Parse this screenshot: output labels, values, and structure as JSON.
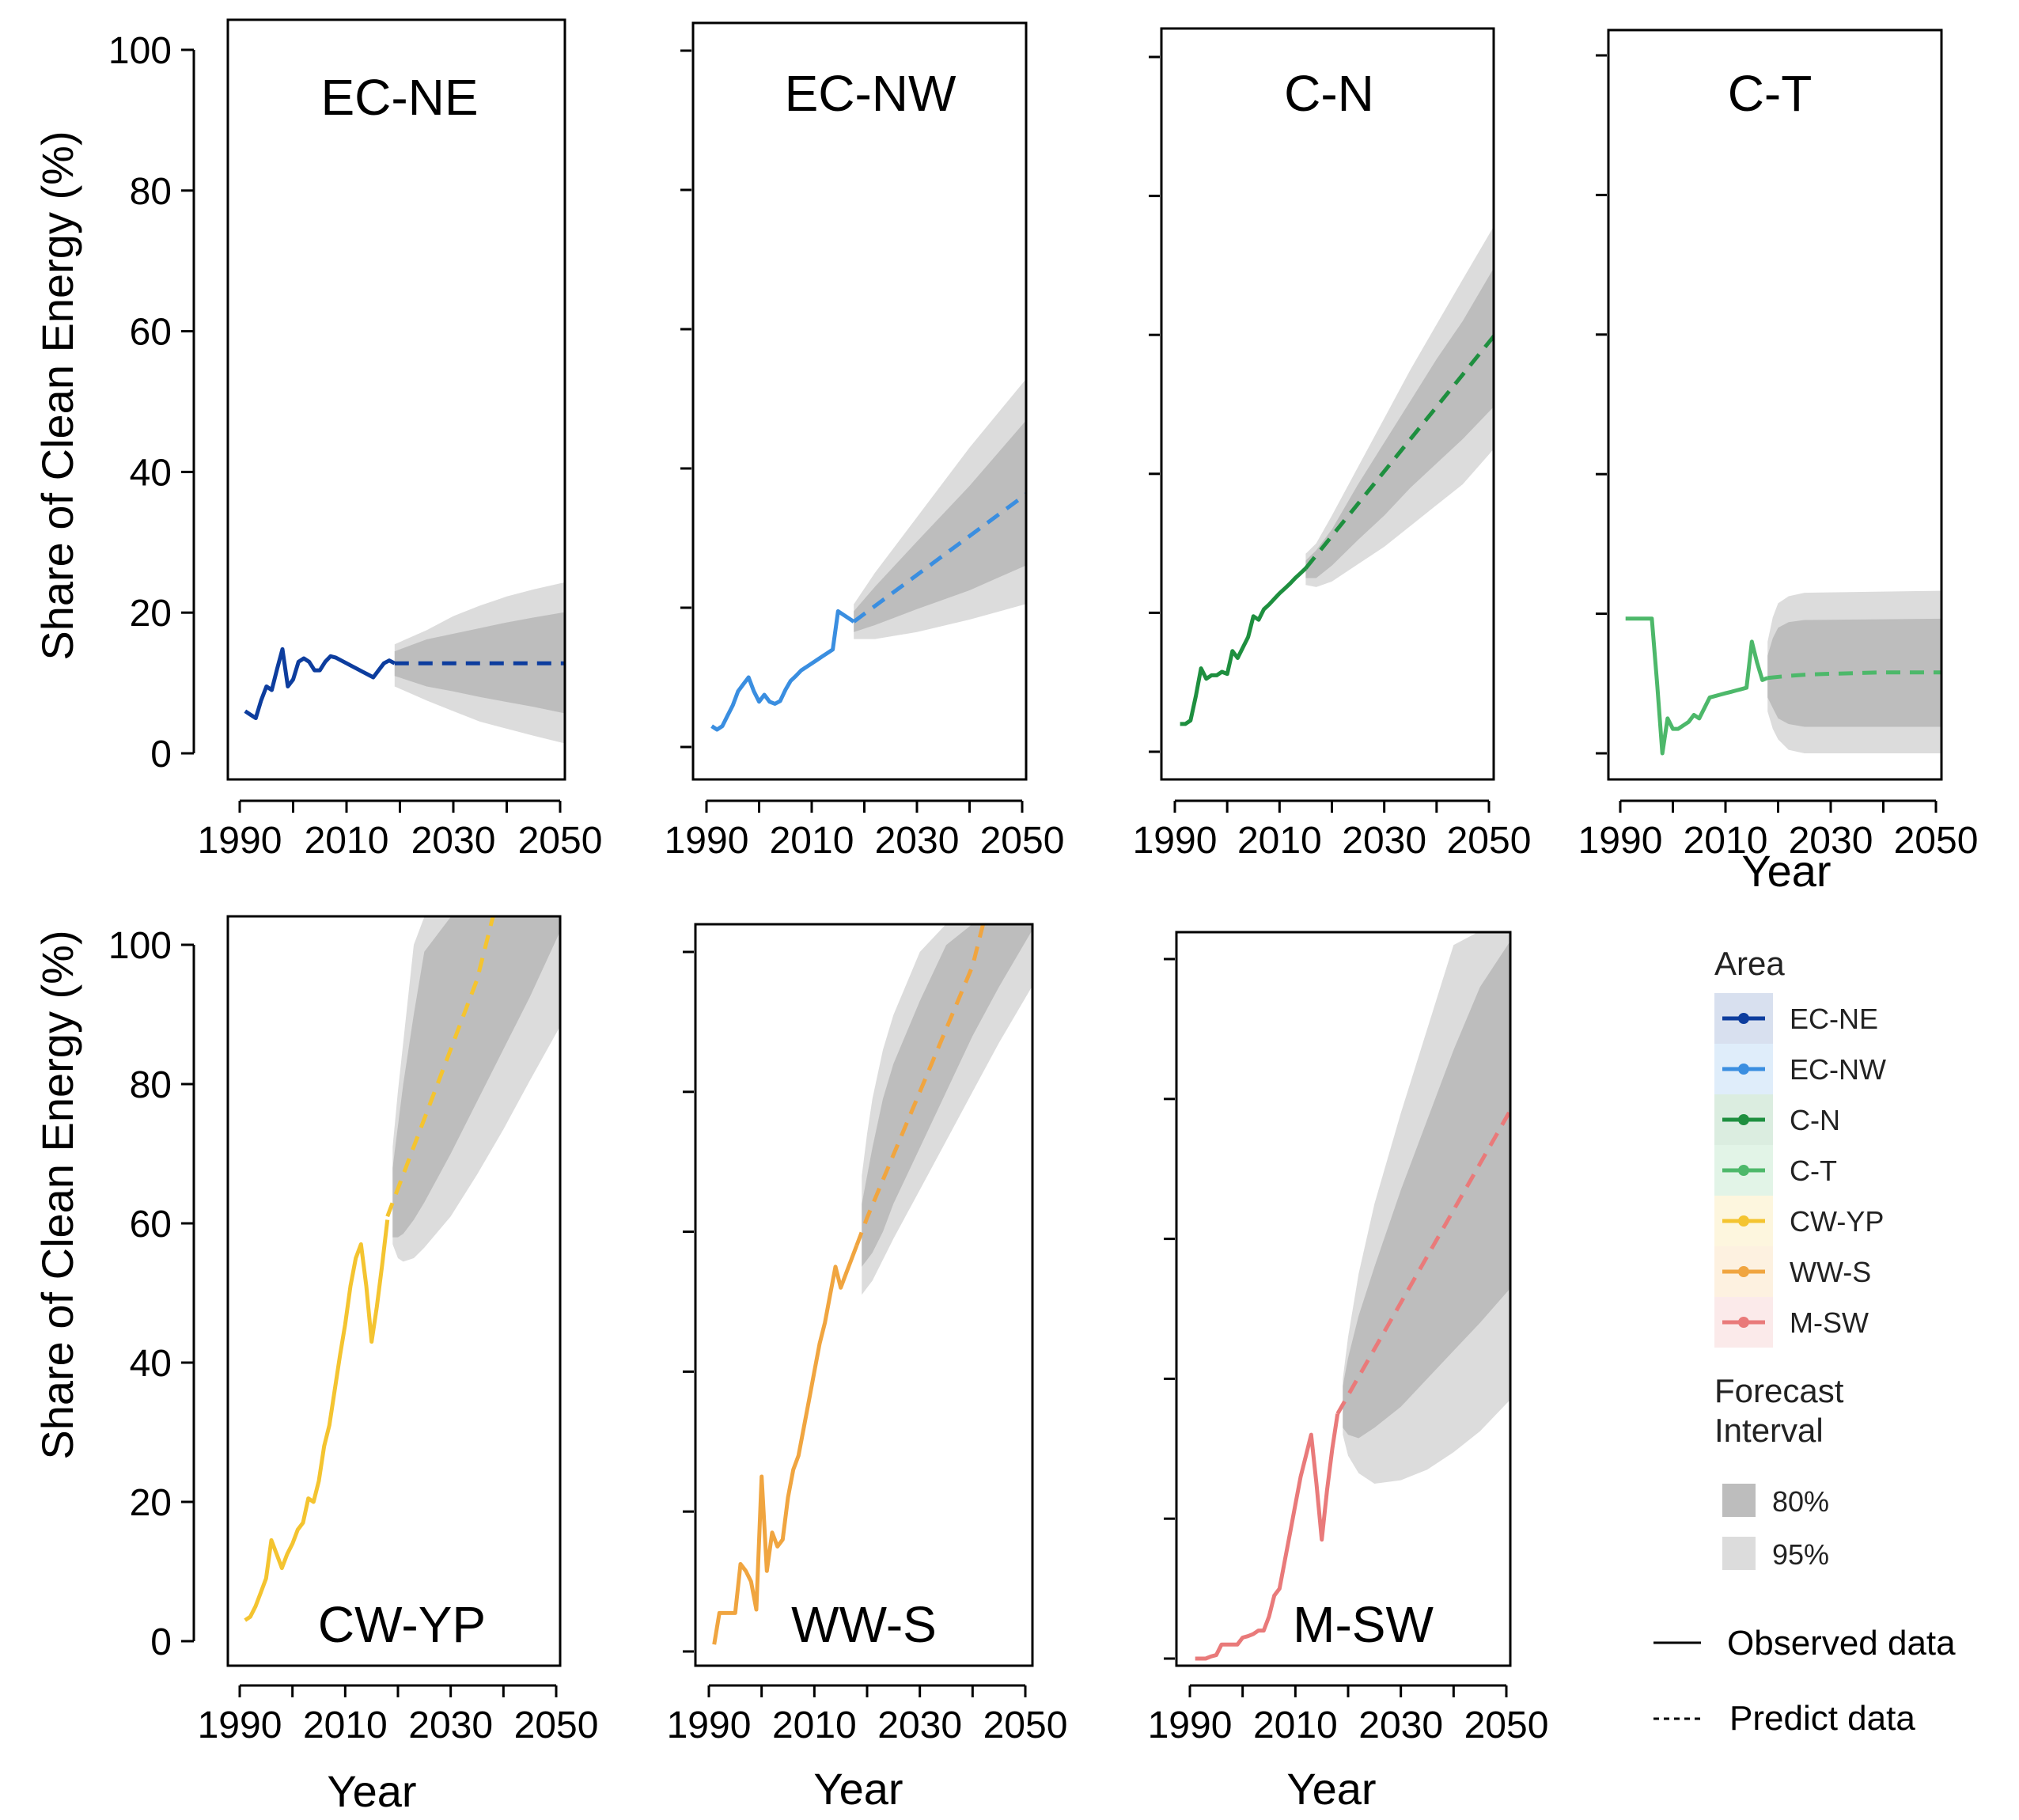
{
  "figure": {
    "y_axis_title": "Share of Clean Energy (%)",
    "x_axis_title": "Year",
    "x_ticks": [
      1990,
      2010,
      2030,
      2050
    ],
    "x_minor_ticks": [
      2000,
      2020,
      2040
    ],
    "y_ticks": [
      0,
      20,
      40,
      60,
      80,
      100
    ]
  },
  "chart_data": [
    {
      "type": "line",
      "title": "EC-NE",
      "color": "#0d3d9e",
      "xlim": [
        1988,
        2052
      ],
      "ylim": [
        -4,
        104
      ],
      "observed": {
        "x": [
          1991,
          1992,
          1993,
          1994,
          1995,
          1996,
          1997,
          1998,
          1999,
          2000,
          2001,
          2002,
          2003,
          2004,
          2005,
          2006,
          2007,
          2008,
          2009,
          2010,
          2011,
          2012,
          2013,
          2014,
          2015,
          2016,
          2017,
          2018,
          2019
        ],
        "y": [
          6,
          5.5,
          5,
          7.5,
          9.5,
          9,
          12,
          14.8,
          9.5,
          10.5,
          13,
          13.5,
          13,
          11.8,
          11.8,
          13,
          13.8,
          13.6,
          13.2,
          12.8,
          12.4,
          12,
          11.6,
          11.2,
          10.8,
          11.8,
          12.8,
          13.2,
          12.8
        ]
      },
      "predicted": {
        "x": [
          2019,
          2052
        ],
        "y": [
          12.8,
          12.8
        ]
      },
      "pi95": {
        "x": [
          2019,
          2025,
          2030,
          2035,
          2040,
          2045,
          2052
        ],
        "lower": [
          9.5,
          7.5,
          6,
          4.5,
          3.5,
          2.5,
          1.2
        ],
        "upper": [
          15.5,
          17.5,
          19.5,
          21,
          22.3,
          23.3,
          24.5
        ]
      },
      "pi80": {
        "x": [
          2019,
          2025,
          2030,
          2035,
          2040,
          2045,
          2052
        ],
        "lower": [
          11,
          9.5,
          8.8,
          8,
          7.3,
          6.6,
          5.5
        ],
        "upper": [
          14.5,
          16.2,
          17,
          17.8,
          18.6,
          19.3,
          20.2
        ]
      }
    },
    {
      "type": "line",
      "title": "EC-NW",
      "color": "#3a8ee0",
      "xlim": [
        1988,
        2052
      ],
      "ylim": [
        -4,
        104
      ],
      "observed": {
        "x": [
          1991,
          1992,
          1993,
          1994,
          1995,
          1996,
          1997,
          1998,
          1999,
          2000,
          2001,
          2002,
          2003,
          2004,
          2005,
          2006,
          2007,
          2008,
          2009,
          2010,
          2011,
          2012,
          2013,
          2014,
          2015,
          2016,
          2017,
          2018
        ],
        "y": [
          3,
          2.5,
          3,
          4.5,
          6,
          8,
          9,
          10,
          8,
          6.5,
          7.5,
          6.5,
          6.2,
          6.6,
          8.2,
          9.5,
          10.2,
          11,
          11.5,
          12,
          12.5,
          13,
          13.5,
          14,
          19.5,
          19,
          18.5,
          18
        ]
      },
      "predicted": {
        "x": [
          2018,
          2052
        ],
        "y": [
          18,
          37
        ]
      },
      "pi95": {
        "x": [
          2018,
          2022,
          2030,
          2040,
          2052
        ],
        "lower": [
          15.5,
          15.5,
          16.5,
          18.3,
          20.8
        ],
        "upper": [
          20.5,
          25,
          33,
          43,
          54
        ]
      },
      "pi80": {
        "x": [
          2018,
          2022,
          2030,
          2040,
          2052
        ],
        "lower": [
          16.5,
          17.5,
          19.8,
          22.5,
          26.5
        ],
        "upper": [
          19.5,
          23,
          29.5,
          37.5,
          48
        ]
      }
    },
    {
      "type": "line",
      "title": "C-N",
      "color": "#1e8f3f",
      "xlim": [
        1988,
        2052
      ],
      "ylim": [
        -4,
        104
      ],
      "observed": {
        "x": [
          1991,
          1992,
          1993,
          1994,
          1995,
          1996,
          1997,
          1998,
          1999,
          2000,
          2001,
          2002,
          2003,
          2004,
          2005,
          2006,
          2007,
          2008,
          2009,
          2010,
          2011,
          2012,
          2013,
          2014,
          2015
        ],
        "y": [
          4,
          4,
          4.5,
          8,
          12,
          10.5,
          11,
          11,
          11.5,
          11.2,
          14.5,
          13.5,
          15,
          16.5,
          19.5,
          19,
          20.5,
          21.2,
          22,
          22.8,
          23.5,
          24.2,
          25,
          25.7,
          26.4
        ]
      },
      "predicted": {
        "x": [
          2015,
          2052
        ],
        "y": [
          26.4,
          60.8
        ]
      },
      "pi95": {
        "x": [
          2015,
          2017,
          2020,
          2025,
          2030,
          2035,
          2040,
          2045,
          2052
        ],
        "lower": [
          24,
          23.7,
          24.5,
          27,
          29.5,
          32.5,
          35.5,
          38.5,
          44.5
        ],
        "upper": [
          28.5,
          30,
          34,
          41,
          48,
          55,
          61.5,
          68,
          77
        ]
      },
      "pi80": {
        "x": [
          2015,
          2017,
          2020,
          2025,
          2030,
          2035,
          2040,
          2045,
          2052
        ],
        "lower": [
          25,
          25,
          26.8,
          30.5,
          34,
          38,
          41.5,
          45,
          50.5
        ],
        "upper": [
          27.5,
          29,
          32,
          38.5,
          44.5,
          50.5,
          56.5,
          62,
          71
        ]
      }
    },
    {
      "type": "line",
      "title": "C-T",
      "color": "#4db86a",
      "xlim": [
        1988,
        2052
      ],
      "ylim": [
        -4,
        104
      ],
      "observed": {
        "x": [
          1991,
          1992,
          1993,
          1994,
          1995,
          1996,
          1997,
          1998,
          1999,
          2000,
          2001,
          2002,
          2003,
          2004,
          2005,
          2006,
          2007,
          2008,
          2009,
          2010,
          2011,
          2012,
          2013,
          2014,
          2015,
          2016,
          2017,
          2018
        ],
        "y": [
          19.3,
          19.3,
          19.3,
          19.3,
          19.3,
          19.3,
          10,
          0,
          5,
          3.5,
          3.5,
          4,
          4.5,
          5.5,
          5,
          6.5,
          8,
          8.2,
          8.4,
          8.6,
          8.8,
          9,
          9.2,
          9.4,
          16,
          13,
          10.5,
          10.8
        ]
      },
      "predicted": {
        "x": [
          2018,
          2022,
          2026,
          2030,
          2040,
          2052
        ],
        "y": [
          10.8,
          11.1,
          11.3,
          11.4,
          11.6,
          11.6
        ]
      },
      "pi95": {
        "x": [
          2018,
          2019,
          2020,
          2022,
          2025,
          2052
        ],
        "lower": [
          6,
          3.5,
          2,
          0.5,
          0,
          0
        ],
        "upper": [
          16,
          19.5,
          21.5,
          22.5,
          23,
          23.3
        ]
      },
      "pi80": {
        "x": [
          2018,
          2019,
          2020,
          2022,
          2025,
          2052
        ],
        "lower": [
          8,
          6.5,
          5,
          4.2,
          3.8,
          3.8
        ],
        "upper": [
          14,
          16.5,
          18,
          18.8,
          19.1,
          19.3
        ]
      }
    },
    {
      "type": "line",
      "title": "CW-YP",
      "color": "#f4c430",
      "xlim": [
        1988,
        2052
      ],
      "ylim": [
        -4,
        104
      ],
      "observed": {
        "x": [
          1991,
          1992,
          1993,
          1994,
          1995,
          1996,
          1997,
          1998,
          1999,
          2000,
          2001,
          2002,
          2003,
          2004,
          2005,
          2006,
          2007,
          2008,
          2009,
          2010,
          2011,
          2012,
          2013,
          2014,
          2015,
          2016,
          2017,
          2018
        ],
        "y": [
          3,
          3.5,
          5,
          7,
          9,
          14.5,
          12.5,
          10.5,
          12.5,
          14,
          16,
          17,
          20.5,
          20,
          23,
          28,
          31,
          36,
          41,
          45.5,
          51,
          55,
          57,
          51,
          43,
          48,
          54,
          60.5
        ]
      },
      "predicted": {
        "x": [
          2018,
          2020,
          2025,
          2030,
          2035,
          2038
        ],
        "y": [
          61,
          65,
          75,
          85,
          95,
          104
        ]
      },
      "pi95": {
        "x": [
          2019,
          2020,
          2021,
          2023,
          2025,
          2030,
          2035,
          2040,
          2045,
          2052
        ],
        "lower": [
          57,
          55,
          54.5,
          55,
          56.5,
          61,
          67,
          73.5,
          80.5,
          90
        ],
        "upper": [
          71,
          79,
          86,
          100,
          104,
          104,
          104,
          104,
          104,
          104
        ]
      },
      "pi80": {
        "x": [
          2019,
          2020,
          2021,
          2023,
          2025,
          2030,
          2035,
          2040,
          2045,
          2052
        ],
        "lower": [
          58,
          58,
          58.5,
          60.5,
          63,
          70,
          77.5,
          85,
          92.5,
          104
        ],
        "upper": [
          68,
          74,
          80,
          90,
          99,
          104,
          104,
          104,
          104,
          104
        ]
      }
    },
    {
      "type": "line",
      "title": "WW-S",
      "color": "#f0a540",
      "xlim": [
        1988,
        2052
      ],
      "ylim": [
        -4,
        104
      ],
      "observed": {
        "x": [
          1991,
          1992,
          1993,
          1994,
          1995,
          1996,
          1997,
          1998,
          1999,
          2000,
          2001,
          2002,
          2003,
          2004,
          2005,
          2006,
          2007,
          2008,
          2009,
          2010,
          2011,
          2012,
          2013,
          2014,
          2015,
          2016,
          2017,
          2018
        ],
        "y": [
          1,
          5.5,
          5.5,
          5.5,
          5.5,
          12.5,
          11.5,
          10,
          6,
          25,
          11.5,
          17,
          15,
          16,
          22,
          26,
          28,
          32,
          36,
          40,
          44,
          47,
          51,
          55,
          52,
          54,
          56,
          58
        ]
      },
      "predicted": {
        "x": [
          2018,
          2020,
          2025,
          2030,
          2035,
          2040,
          2042
        ],
        "y": [
          58,
          62,
          71,
          80,
          89,
          98,
          104
        ]
      },
      "pi95": {
        "x": [
          2019,
          2020,
          2021,
          2023,
          2025,
          2030,
          2035,
          2040,
          2045,
          2052
        ],
        "lower": [
          51,
          52,
          53,
          56,
          59,
          66,
          73,
          80,
          87,
          96
        ],
        "upper": [
          68,
          74,
          79,
          86,
          91,
          100,
          104,
          104,
          104,
          104
        ]
      },
      "pi80": {
        "x": [
          2019,
          2020,
          2021,
          2023,
          2025,
          2030,
          2035,
          2040,
          2045,
          2052
        ],
        "lower": [
          55,
          56,
          57,
          60,
          64,
          72,
          80,
          88,
          95,
          104
        ],
        "upper": [
          64,
          68,
          72,
          79,
          84,
          93,
          101,
          104,
          104,
          104
        ]
      }
    },
    {
      "type": "line",
      "title": "M-SW",
      "color": "#e97a7a",
      "xlim": [
        1988,
        2052
      ],
      "ylim": [
        -4,
        104
      ],
      "observed": {
        "x": [
          1991,
          1992,
          1993,
          1994,
          1995,
          1996,
          1997,
          1998,
          1999,
          2000,
          2001,
          2002,
          2003,
          2004,
          2005,
          2006,
          2007,
          2008,
          2009,
          2010,
          2011,
          2012,
          2013,
          2014,
          2015,
          2016,
          2017,
          2018
        ],
        "y": [
          0,
          0,
          0,
          0.3,
          0.5,
          2,
          2,
          2,
          2,
          3,
          3.2,
          3.5,
          4,
          4,
          6,
          9,
          10,
          14,
          18,
          22,
          26,
          29,
          32,
          25,
          17,
          24,
          30,
          35
        ]
      },
      "predicted": {
        "x": [
          2018,
          2052
        ],
        "y": [
          35,
          80
        ]
      },
      "pi95": {
        "x": [
          2019,
          2020,
          2022,
          2025,
          2030,
          2035,
          2040,
          2045,
          2052
        ],
        "lower": [
          32,
          29,
          26.5,
          25,
          25.5,
          27,
          29.5,
          32.5,
          38
        ],
        "upper": [
          40,
          46,
          55,
          65,
          78,
          90,
          102,
          104,
          104
        ]
      },
      "pi80": {
        "x": [
          2019,
          2020,
          2022,
          2025,
          2030,
          2035,
          2040,
          2045,
          2052
        ],
        "lower": [
          33,
          32,
          31.5,
          33,
          36,
          40,
          44,
          48,
          54
        ],
        "upper": [
          39,
          43,
          49,
          56,
          67,
          77,
          87,
          96,
          104
        ]
      }
    }
  ],
  "legend": {
    "title": "Area",
    "items": [
      {
        "label": "EC-NE",
        "color": "#0d3d9e"
      },
      {
        "label": "EC-NW",
        "color": "#3a8ee0"
      },
      {
        "label": "C-N",
        "color": "#1e8f3f"
      },
      {
        "label": "C-T",
        "color": "#4db86a"
      },
      {
        "label": "CW-YP",
        "color": "#f4c430"
      },
      {
        "label": "WW-S",
        "color": "#f0a540"
      },
      {
        "label": "M-SW",
        "color": "#e97a7a"
      }
    ],
    "interval_title_line1": "Forecast",
    "interval_title_line2": "Interval",
    "interval_80_label": "80%",
    "interval_95_label": "95%",
    "interval_80_color": "#bdbdbd",
    "interval_95_color": "#dcdcdc",
    "observed_label": "Observed data",
    "predict_label": "Predict data"
  }
}
